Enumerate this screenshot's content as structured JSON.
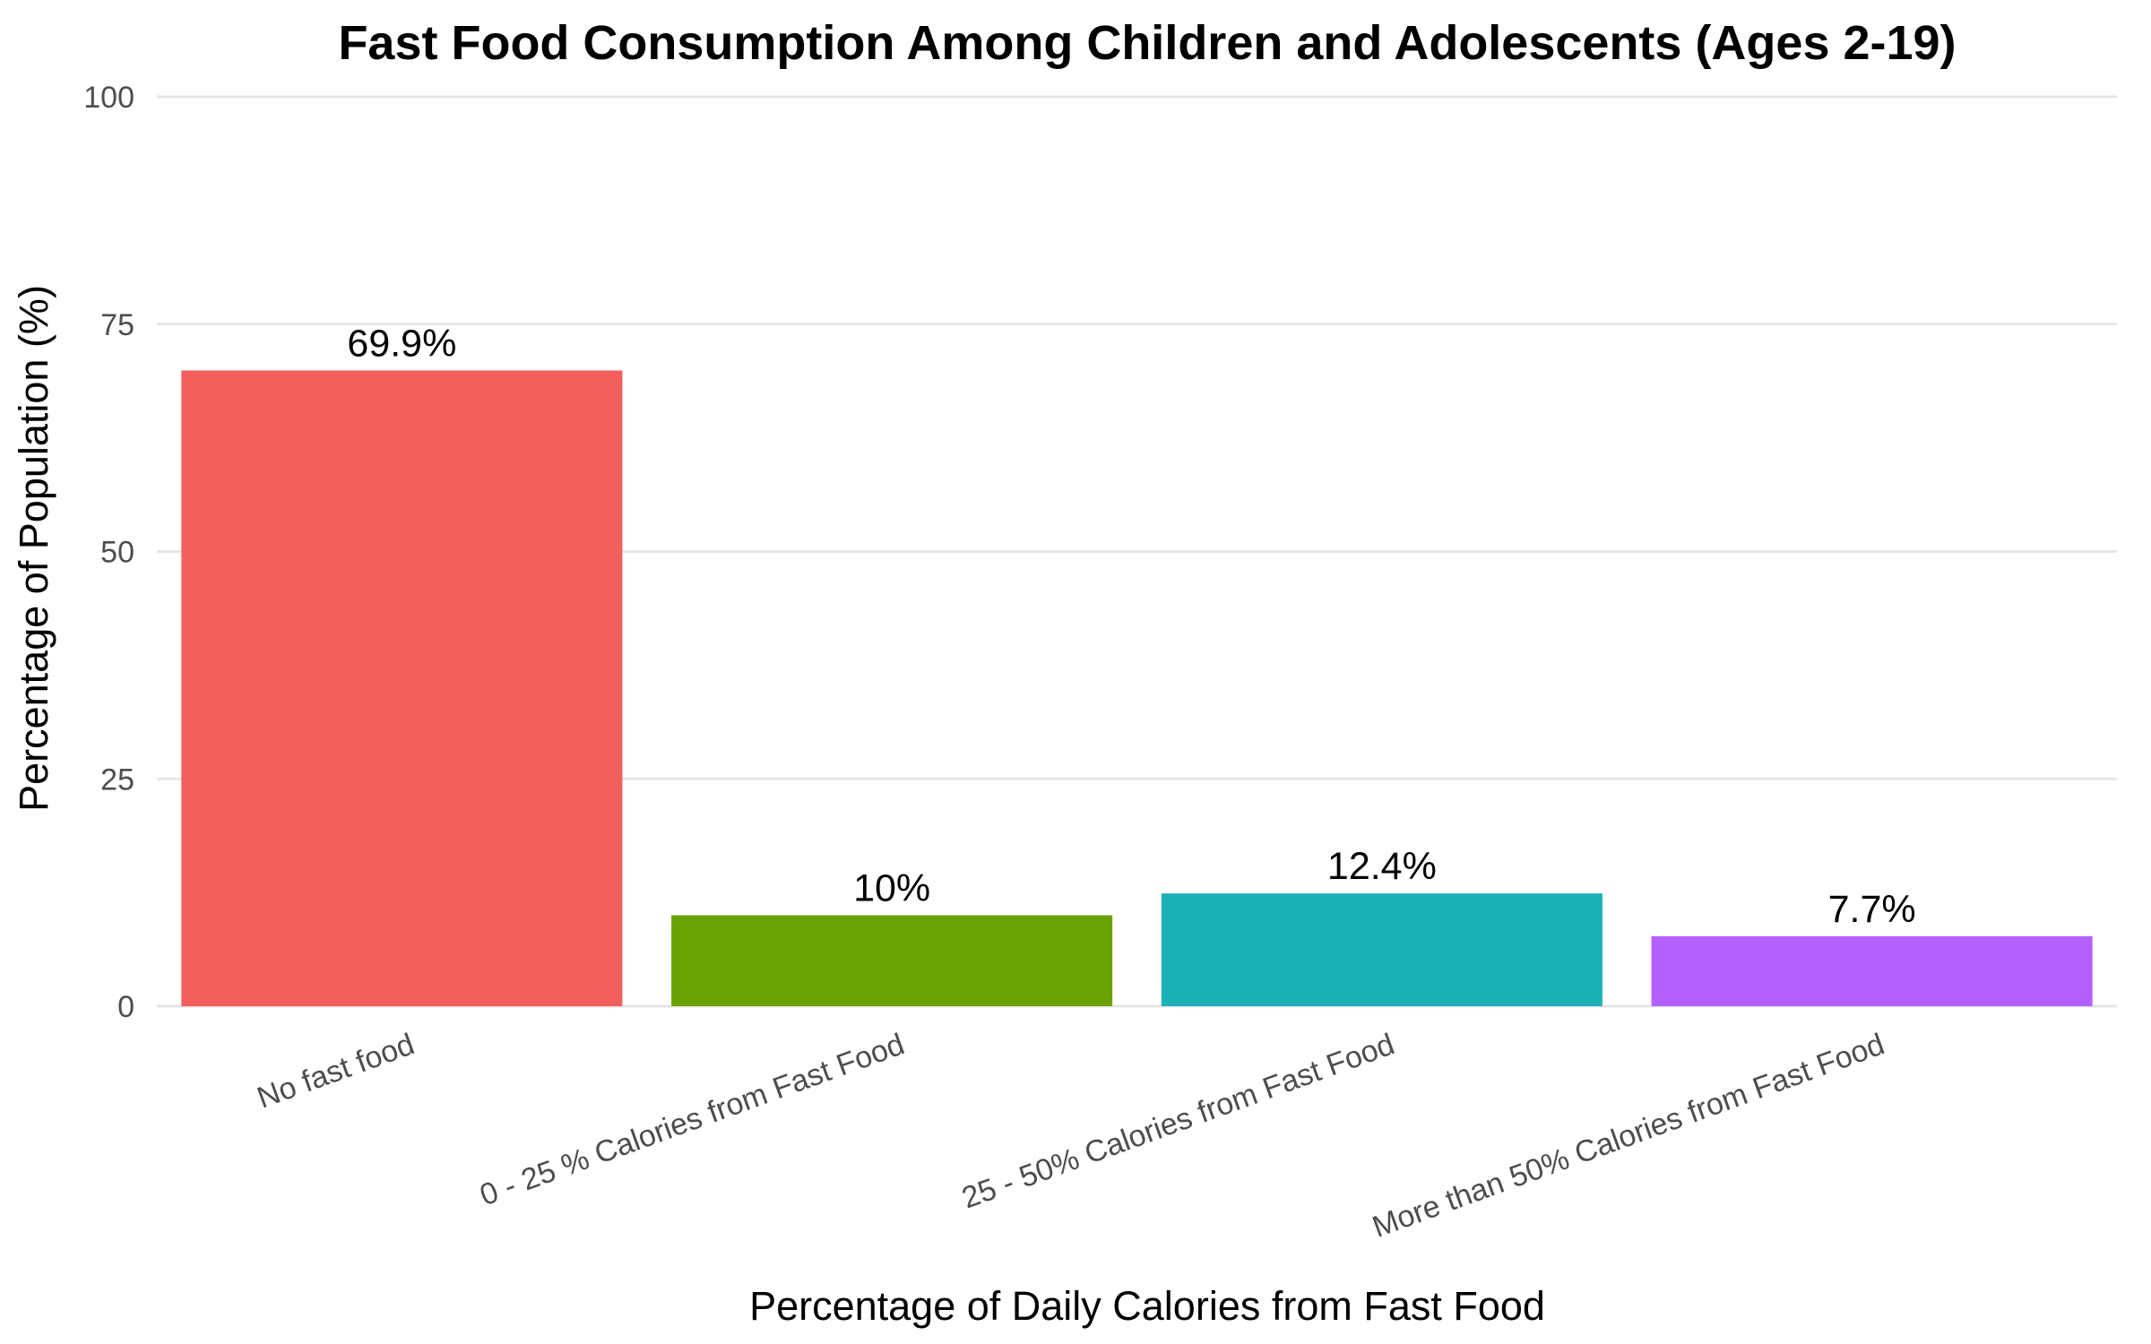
{
  "chart_data": {
    "type": "bar",
    "title": "Fast Food Consumption Among Children and Adolescents (Ages 2-19)",
    "xlabel": "Percentage of Daily Calories from Fast Food",
    "ylabel": "Percentage of Population (%)",
    "ylim": [
      0,
      100
    ],
    "yticks": [
      0,
      25,
      50,
      75,
      100
    ],
    "ytick_labels": [
      "0",
      "25",
      "50",
      "75",
      "100"
    ],
    "grid": true,
    "legend": "none",
    "categories": [
      "No fast food",
      "0 - 25 % Calories from Fast Food",
      "25 - 50% Calories from Fast Food",
      "More than 50% Calories from Fast Food"
    ],
    "values": [
      69.9,
      10,
      12.4,
      7.7
    ],
    "data_labels": [
      "69.9%",
      "10%",
      "12.4%",
      "7.7%"
    ],
    "colors": [
      "#F25F5C",
      "#6AA204",
      "#1AB2B7",
      "#B65FFF"
    ]
  }
}
